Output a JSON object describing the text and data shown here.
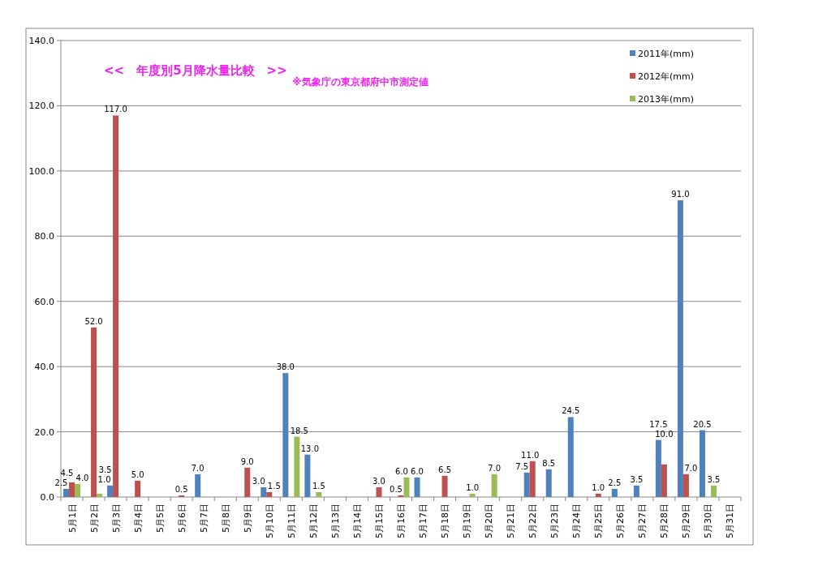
{
  "chart_data": {
    "type": "bar",
    "title": "<<　年度別5月降水量比較　>>",
    "subtitle": "※気象庁の東京都府中市測定値",
    "categories": [
      "5月1日",
      "5月2日",
      "5月3日",
      "5月4日",
      "5月5日",
      "5月6日",
      "5月7日",
      "5月8日",
      "5月9日",
      "5月10日",
      "5月11日",
      "5月12日",
      "5月13日",
      "5月14日",
      "5月15日",
      "5月16日",
      "5月17日",
      "5月18日",
      "5月19日",
      "5月20日",
      "5月21日",
      "5月22日",
      "5月23日",
      "5月24日",
      "5月25日",
      "5月26日",
      "5月27日",
      "5月28日",
      "5月29日",
      "5月30日",
      "5月31日"
    ],
    "series": [
      {
        "name": "2011年(mm)",
        "color": "#4f81bd",
        "values": [
          2.5,
          null,
          3.5,
          null,
          null,
          null,
          7.0,
          null,
          null,
          3.0,
          38.0,
          13.0,
          null,
          null,
          null,
          null,
          6.0,
          null,
          null,
          null,
          null,
          7.5,
          8.5,
          24.5,
          null,
          2.5,
          3.5,
          17.5,
          91.0,
          20.5,
          null
        ],
        "value_labels": [
          "2.5",
          null,
          "3.5",
          null,
          null,
          null,
          "7.0",
          null,
          null,
          "3.0",
          "38.0",
          "13.0",
          null,
          null,
          null,
          null,
          "6.0",
          null,
          null,
          null,
          null,
          "7.5",
          "8.5",
          "24.5",
          null,
          "2.5",
          "3.5",
          "17.5",
          "91.0",
          "20.5",
          null
        ]
      },
      {
        "name": "2012年(mm)",
        "color": "#c0504d",
        "values": [
          4.5,
          52.0,
          117.0,
          5.0,
          null,
          0.5,
          null,
          null,
          9.0,
          1.5,
          null,
          null,
          null,
          null,
          3.0,
          0.5,
          null,
          6.5,
          null,
          null,
          null,
          11.0,
          null,
          null,
          1.0,
          null,
          null,
          10.0,
          7.0,
          null,
          null
        ],
        "value_labels": [
          "4.5",
          "52.0",
          "117.0",
          "5.0",
          null,
          "0.5",
          null,
          null,
          "9.0",
          "1.5",
          null,
          null,
          null,
          null,
          "3.0",
          "0.5",
          null,
          "6.5",
          null,
          null,
          null,
          "11.0",
          null,
          null,
          "1.0",
          null,
          null,
          "10.0",
          "7.0",
          null,
          null
        ]
      },
      {
        "name": "2013年(mm)",
        "color": "#9bbb59",
        "values": [
          4.0,
          1.0,
          null,
          null,
          null,
          null,
          null,
          null,
          null,
          null,
          18.5,
          1.5,
          null,
          null,
          null,
          6.0,
          null,
          null,
          1.0,
          7.0,
          null,
          null,
          null,
          null,
          null,
          null,
          null,
          null,
          null,
          3.5,
          null
        ],
        "value_labels": [
          "4.0",
          "1.0",
          null,
          null,
          null,
          null,
          null,
          null,
          null,
          null,
          "18.5",
          "1.5",
          null,
          null,
          null,
          "6.0",
          null,
          null,
          "1.0",
          "7.0",
          null,
          null,
          null,
          null,
          null,
          null,
          null,
          null,
          null,
          "3.5",
          null
        ]
      }
    ],
    "ylim": [
      0,
      140
    ],
    "yticks": [
      {
        "value": 0,
        "label": "0.0"
      },
      {
        "value": 20,
        "label": "20.0"
      },
      {
        "value": 40,
        "label": "40.0"
      },
      {
        "value": 60,
        "label": "60.0"
      },
      {
        "value": 80,
        "label": "80.0"
      },
      {
        "value": 100,
        "label": "100.0"
      },
      {
        "value": 120,
        "label": "120.0"
      },
      {
        "value": 140,
        "label": "140.0"
      }
    ],
    "grid": "y",
    "legend": "top right"
  }
}
